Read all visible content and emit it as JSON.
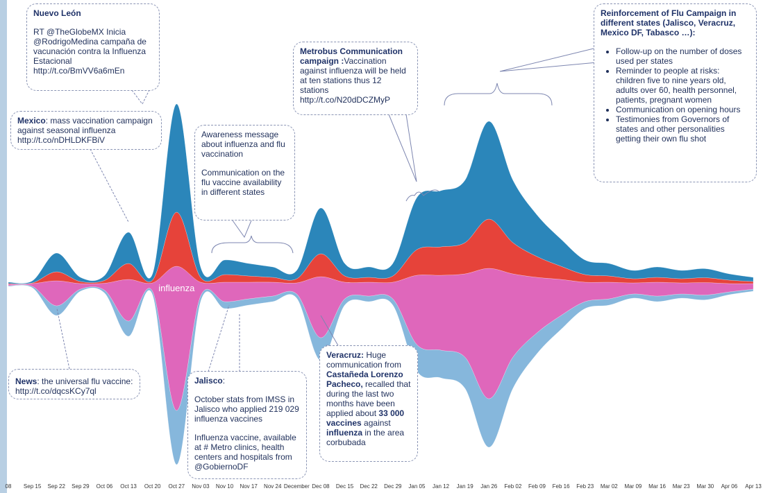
{
  "chart_data": {
    "type": "streamgraph",
    "categories": [
      "08",
      "Sep 15",
      "Sep 22",
      "Sep 29",
      "Oct 06",
      "Oct 13",
      "Oct 20",
      "Oct 27",
      "Nov 03",
      "Nov 10",
      "Nov 17",
      "Nov 24",
      "December",
      "Dec 08",
      "Dec 15",
      "Dec 22",
      "Dec 29",
      "Jan 05",
      "Jan 12",
      "Jan 19",
      "Jan 26",
      "Feb 02",
      "Feb 09",
      "Feb 16",
      "Feb 23",
      "Mar 02",
      "Mar 09",
      "Mar 16",
      "Mar 23",
      "Mar 30",
      "Apr 06",
      "Apr 13"
    ],
    "series": [
      {
        "color": "#86b7dc",
        "values": [
          1,
          2,
          14,
          3,
          4,
          22,
          5,
          78,
          8,
          10,
          9,
          8,
          6,
          33,
          9,
          8,
          9,
          38,
          40,
          45,
          70,
          45,
          30,
          20,
          10,
          9,
          6,
          8,
          6,
          7,
          4,
          3
        ]
      },
      {
        "name": "influenza",
        "color": "#df67bb",
        "values": [
          2,
          4,
          36,
          8,
          10,
          60,
          12,
          208,
          20,
          28,
          24,
          20,
          16,
          88,
          24,
          20,
          24,
          100,
          108,
          120,
          188,
          120,
          80,
          52,
          28,
          24,
          16,
          20,
          16,
          18,
          12,
          8
        ]
      },
      {
        "color": "#e6433a",
        "values": [
          1,
          1,
          13,
          3,
          4,
          23,
          4,
          78,
          7,
          11,
          9,
          7,
          6,
          33,
          9,
          7,
          9,
          37,
          41,
          45,
          71,
          45,
          30,
          19,
          11,
          9,
          6,
          7,
          6,
          7,
          5,
          3
        ]
      },
      {
        "color": "#2b86ba",
        "values": [
          2,
          3,
          27,
          6,
          7,
          45,
          9,
          156,
          15,
          21,
          18,
          15,
          12,
          66,
          18,
          15,
          18,
          75,
          81,
          90,
          141,
          90,
          60,
          39,
          21,
          18,
          12,
          15,
          12,
          13,
          9,
          6
        ]
      }
    ]
  },
  "annotations": [
    {
      "paragraphs": [
        [
          {
            "text": "Nuevo León",
            "bold": true
          }
        ],
        [
          {
            "text": "RT @TheGlobeMX Inicia @RodrigoMedina campaña de vacunación contra la Influenza Estacional http://t.co/BmVV6a6mEn"
          }
        ]
      ]
    },
    {
      "paragraphs": [
        [
          {
            "text": "Mexico",
            "bold": true
          },
          {
            "text": ": mass vaccination campaign against seasonal influenza http://t.co/nDHLDKFBiV"
          }
        ]
      ]
    },
    {
      "paragraphs": [
        [
          {
            "text": "Awareness message about influenza and flu vaccination"
          }
        ],
        [
          {
            "text": "Communication on the flu vaccine availability in different states"
          }
        ]
      ]
    },
    {
      "paragraphs": [
        [
          {
            "text": "Metrobus Communication campaign :",
            "bold": true
          },
          {
            "text": "Vaccination against influenza will be held at ten stations thus 12 stations http://t.co/N20dDCZMyP"
          }
        ]
      ]
    },
    {
      "paragraphs": [
        [
          {
            "text": "Reinforcement of Flu Campaign in different states (Jalisco, Veracruz, Mexico DF, Tabasco …):",
            "bold": true
          }
        ]
      ],
      "bullets": [
        "Follow-up on the  number of doses used per states",
        "Reminder to people at risks: children five to nine years old, adults over 60, health personnel, patients, pregnant women",
        "Communication on opening hours",
        "Testimonies from Governors of states and other personalities getting their own flu shot"
      ]
    },
    {
      "paragraphs": [
        [
          {
            "text": "News",
            "bold": true
          },
          {
            "text": ": the universal flu vaccine: http://t.co/dqcsKCy7ql"
          }
        ]
      ]
    },
    {
      "paragraphs": [
        [
          {
            "text": "Jalisco",
            "bold": true
          },
          {
            "text": ":"
          }
        ],
        [
          {
            "text": "October stats from  IMSS in Jalisco who applied 219 029 influenza vaccines"
          }
        ],
        [
          {
            "text": "Influenza vaccine, available at # Metro clinics, health centers and hospitals from @GobiernoDF"
          }
        ]
      ]
    },
    {
      "paragraphs": [
        [
          {
            "text": "Veracruz:",
            "bold": true
          },
          {
            "text": " Huge communication from "
          },
          {
            "text": "Castañeda Lorenzo Pacheco,",
            "bold": true
          },
          {
            "text": " recalled that during the last two months have been applied about "
          },
          {
            "text": "33 000 vaccines",
            "bold": true
          },
          {
            "text": " against "
          },
          {
            "text": "influenza",
            "bold": true
          },
          {
            "text": " in the area corbubada"
          }
        ]
      ]
    }
  ]
}
